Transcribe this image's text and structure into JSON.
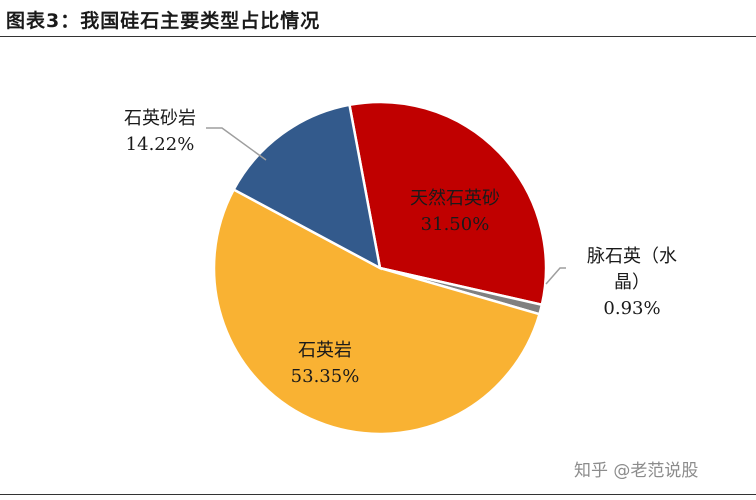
{
  "header": {
    "title": "图表3：我国硅石主要类型占比情况"
  },
  "watermark": "知乎 @老范说股",
  "chart_data": {
    "type": "pie",
    "title": "",
    "slices": [
      {
        "label": "天然石英砂",
        "label_lines": [
          "天然石英砂"
        ],
        "value": 31.5,
        "value_text": "31.50%",
        "color": "#c00000"
      },
      {
        "label": "脉石英（水晶）",
        "label_lines": [
          "脉石英（水",
          "晶）"
        ],
        "value": 0.93,
        "value_text": "0.93%",
        "color": "#808080"
      },
      {
        "label": "石英岩",
        "label_lines": [
          "石英岩"
        ],
        "value": 53.35,
        "value_text": "53.35%",
        "color": "#f9b233"
      },
      {
        "label": "石英砂岩",
        "label_lines": [
          "石英砂岩"
        ],
        "value": 14.22,
        "value_text": "14.22%",
        "color": "#335a8c"
      }
    ],
    "legend": "none"
  }
}
